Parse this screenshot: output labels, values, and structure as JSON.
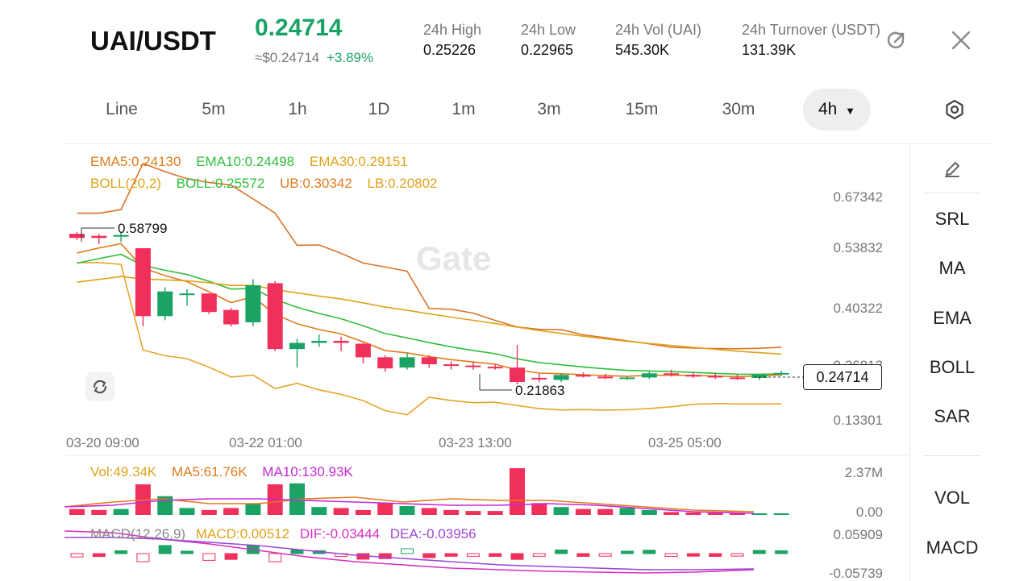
{
  "header": {
    "pair": "UAI/USDT",
    "price": "0.24714",
    "usd_price": "≈$0.24714",
    "change": "+3.89%",
    "stats": [
      {
        "label": "24h  High",
        "value": "0.25226"
      },
      {
        "label": "24h  Low",
        "value": "0.22965"
      },
      {
        "label": "24h  Vol (UAI)",
        "value": "545.30K"
      },
      {
        "label": "24h  Turnover (USDT)",
        "value": "131.39K"
      }
    ],
    "share_icon": "share-icon",
    "close_icon": "close-icon"
  },
  "tabs": [
    "Line",
    "5m",
    "1h",
    "1D",
    "1m",
    "3m",
    "15m",
    "30m",
    "4h"
  ],
  "active_tab": "4h",
  "settings_icon": "hexagon-settings-icon",
  "indicators": {
    "ema5": "EMA5:0.24130",
    "ema10": "EMA10:0.24498",
    "ema30": "EMA30:0.29151",
    "boll_params": "BOLL(20,2)",
    "boll": "BOLL:0.25572",
    "ub": "UB:0.30342",
    "lb": "LB:0.20802",
    "vol": "Vol:49.34K",
    "vol_ma5": "MA5:61.76K",
    "vol_ma10": "MA10:130.93K",
    "macd_params": "MACD(12,26,9)",
    "macd": "MACD:0.00512",
    "dif": "DIF:-0.03444",
    "dea": "DEA:-0.03956"
  },
  "axes": {
    "price_ticks": [
      "0.67342",
      "0.53832",
      "0.40322",
      "0.26812",
      "0.13301"
    ],
    "time_ticks": [
      "03-20 09:00",
      "03-22 01:00",
      "03-23 13:00",
      "03-25 05:00"
    ],
    "vol_ticks": [
      "2.37M",
      "0.00"
    ],
    "macd_ticks": [
      "0.05909",
      "-0.05739"
    ]
  },
  "annotations": {
    "high_mark": "0.58799",
    "low_mark": "0.21863",
    "current_price": "0.24714"
  },
  "watermark": "Gate",
  "sidebar": [
    "SRL",
    "MA",
    "EMA",
    "BOLL",
    "SAR",
    "VOL",
    "MACD"
  ],
  "colors": {
    "up": "#1aa364",
    "down": "#f0305a",
    "ema5": "#e07b1a",
    "ema10": "#2fbf3b",
    "ema30": "#e0a21a",
    "boll_ub": "#d9742a",
    "boll_lb": "#e4a52a",
    "macd_dif": "#d62fc4",
    "macd_dea": "#9b47d6"
  },
  "chart_data": {
    "type": "candlestick",
    "interval": "4h",
    "candles": [
      {
        "o": 0.585,
        "h": 0.589,
        "l": 0.57,
        "c": 0.575
      },
      {
        "o": 0.58,
        "h": 0.585,
        "l": 0.56,
        "c": 0.575
      },
      {
        "o": 0.578,
        "h": 0.588,
        "l": 0.565,
        "c": 0.582
      },
      {
        "o": 0.55,
        "h": 0.55,
        "l": 0.36,
        "c": 0.385
      },
      {
        "o": 0.385,
        "h": 0.455,
        "l": 0.375,
        "c": 0.445
      },
      {
        "o": 0.44,
        "h": 0.45,
        "l": 0.41,
        "c": 0.44
      },
      {
        "o": 0.44,
        "h": 0.44,
        "l": 0.39,
        "c": 0.395
      },
      {
        "o": 0.4,
        "h": 0.405,
        "l": 0.36,
        "c": 0.365
      },
      {
        "o": 0.37,
        "h": 0.475,
        "l": 0.36,
        "c": 0.46
      },
      {
        "o": 0.465,
        "h": 0.47,
        "l": 0.3,
        "c": 0.305
      },
      {
        "o": 0.305,
        "h": 0.33,
        "l": 0.26,
        "c": 0.32
      },
      {
        "o": 0.32,
        "h": 0.34,
        "l": 0.31,
        "c": 0.325
      },
      {
        "o": 0.325,
        "h": 0.335,
        "l": 0.3,
        "c": 0.32
      },
      {
        "o": 0.318,
        "h": 0.32,
        "l": 0.27,
        "c": 0.285
      },
      {
        "o": 0.285,
        "h": 0.29,
        "l": 0.25,
        "c": 0.258
      },
      {
        "o": 0.26,
        "h": 0.295,
        "l": 0.255,
        "c": 0.285
      },
      {
        "o": 0.285,
        "h": 0.29,
        "l": 0.26,
        "c": 0.268
      },
      {
        "o": 0.268,
        "h": 0.275,
        "l": 0.255,
        "c": 0.265
      },
      {
        "o": 0.265,
        "h": 0.275,
        "l": 0.255,
        "c": 0.262
      },
      {
        "o": 0.262,
        "h": 0.268,
        "l": 0.255,
        "c": 0.258
      },
      {
        "o": 0.26,
        "h": 0.315,
        "l": 0.219,
        "c": 0.225
      },
      {
        "o": 0.235,
        "h": 0.245,
        "l": 0.225,
        "c": 0.232
      },
      {
        "o": 0.23,
        "h": 0.245,
        "l": 0.225,
        "c": 0.242
      },
      {
        "o": 0.242,
        "h": 0.248,
        "l": 0.236,
        "c": 0.238
      },
      {
        "o": 0.238,
        "h": 0.245,
        "l": 0.232,
        "c": 0.236
      },
      {
        "o": 0.236,
        "h": 0.238,
        "l": 0.23,
        "c": 0.236
      },
      {
        "o": 0.236,
        "h": 0.25,
        "l": 0.232,
        "c": 0.246
      },
      {
        "o": 0.246,
        "h": 0.255,
        "l": 0.238,
        "c": 0.242
      },
      {
        "o": 0.242,
        "h": 0.25,
        "l": 0.235,
        "c": 0.24
      },
      {
        "o": 0.24,
        "h": 0.245,
        "l": 0.232,
        "c": 0.236
      },
      {
        "o": 0.236,
        "h": 0.244,
        "l": 0.23,
        "c": 0.235
      },
      {
        "o": 0.235,
        "h": 0.245,
        "l": 0.23,
        "c": 0.243
      },
      {
        "o": 0.243,
        "h": 0.252,
        "l": 0.24,
        "c": 0.247
      }
    ],
    "volume": [
      0.3,
      0.25,
      0.3,
      1.55,
      0.95,
      0.35,
      0.25,
      0.35,
      0.55,
      1.55,
      1.6,
      0.4,
      0.35,
      0.25,
      0.6,
      0.45,
      0.35,
      0.25,
      0.2,
      0.2,
      2.37,
      0.6,
      0.4,
      0.3,
      0.3,
      0.35,
      0.25,
      0.15,
      0.12,
      0.1,
      0.08,
      0.08,
      0.05
    ],
    "ylim": [
      0.13301,
      0.67342
    ],
    "vol_ylim": [
      0,
      2.37
    ]
  }
}
